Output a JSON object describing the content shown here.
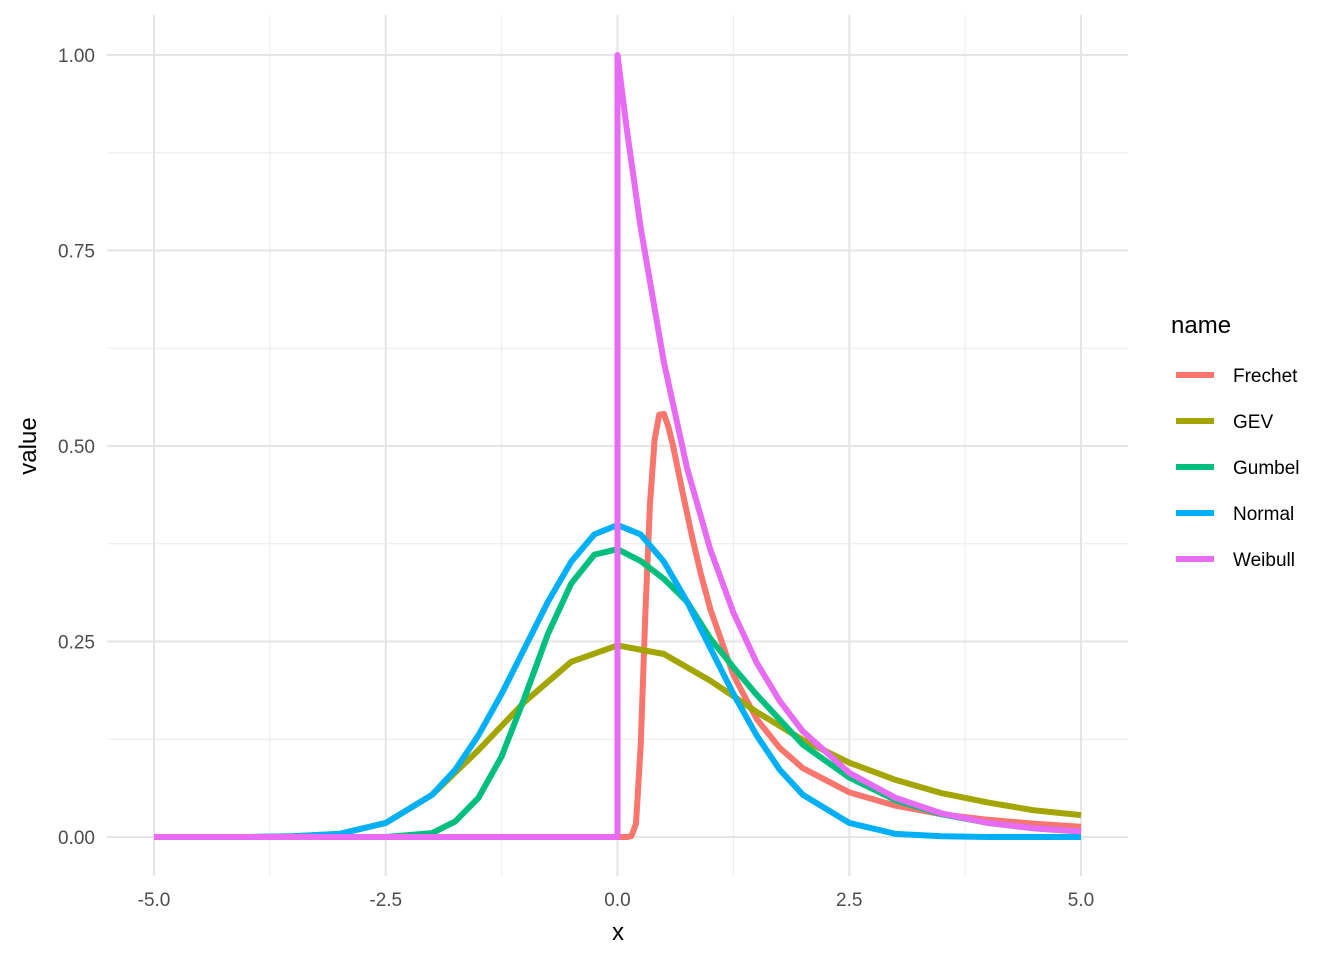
{
  "chart_data": {
    "type": "line",
    "title": "",
    "xlabel": "x",
    "ylabel": "value",
    "xlim": [
      -5,
      5
    ],
    "ylim": [
      0,
      1
    ],
    "x_ticks": [
      -5,
      -2.5,
      0,
      2.5,
      5
    ],
    "x_tick_labels": [
      "-5.0",
      "-2.5",
      "0.0",
      "2.5",
      "5.0"
    ],
    "y_ticks": [
      0,
      0.25,
      0.5,
      0.75,
      1
    ],
    "y_tick_labels": [
      "0.00",
      "0.25",
      "0.50",
      "0.75",
      "1.00"
    ],
    "grid": true,
    "legend": {
      "title": "name",
      "position": "right",
      "entries": [
        "Frechet",
        "GEV",
        "Gumbel",
        "Normal",
        "Weibull"
      ]
    },
    "series": [
      {
        "name": "Frechet",
        "color": "#F8766D",
        "x": [
          -5,
          -2.5,
          -1,
          0,
          0.05,
          0.1,
          0.15,
          0.2,
          0.25,
          0.3,
          0.35,
          0.4,
          0.45,
          0.5,
          0.55,
          0.6,
          0.7,
          0.8,
          0.9,
          1,
          1.25,
          1.5,
          1.75,
          2,
          2.5,
          3,
          3.5,
          4,
          4.5,
          5
        ],
        "y": [
          0,
          0,
          0,
          0,
          0,
          0,
          0.001,
          0.017,
          0.117,
          0.284,
          0.424,
          0.508,
          0.54,
          0.541,
          0.524,
          0.5,
          0.442,
          0.386,
          0.336,
          0.292,
          0.207,
          0.151,
          0.114,
          0.088,
          0.057,
          0.04,
          0.029,
          0.022,
          0.017,
          0.013
        ]
      },
      {
        "name": "GEV",
        "color": "#A3A500",
        "x": [
          -5,
          -4,
          -3.5,
          -3,
          -2.5,
          -2,
          -1.5,
          -1,
          -0.5,
          0,
          0.5,
          1,
          1.5,
          2,
          2.5,
          3,
          3.5,
          4,
          4.5,
          5
        ],
        "y": [
          0,
          0,
          0.001,
          0.004,
          0.018,
          0.054,
          0.111,
          0.173,
          0.224,
          0.245,
          0.234,
          0.2,
          0.16,
          0.124,
          0.095,
          0.073,
          0.056,
          0.044,
          0.034,
          0.028
        ]
      },
      {
        "name": "Gumbel",
        "color": "#00BF7D",
        "x": [
          -5,
          -2.5,
          -2,
          -1.75,
          -1.5,
          -1.25,
          -1,
          -0.75,
          -0.5,
          -0.25,
          0,
          0.25,
          0.5,
          0.75,
          1,
          1.25,
          1.5,
          2,
          2.5,
          3,
          3.5,
          4,
          4.5,
          5
        ],
        "y": [
          0,
          0,
          0.005,
          0.02,
          0.05,
          0.103,
          0.179,
          0.26,
          0.324,
          0.361,
          0.368,
          0.353,
          0.33,
          0.301,
          0.254,
          0.217,
          0.182,
          0.118,
          0.076,
          0.047,
          0.029,
          0.018,
          0.011,
          0.007
        ]
      },
      {
        "name": "Normal",
        "color": "#00B0F6",
        "x": [
          -5,
          -4,
          -3.5,
          -3,
          -2.5,
          -2,
          -1.75,
          -1.5,
          -1.25,
          -1,
          -0.75,
          -0.5,
          -0.25,
          0,
          0.25,
          0.5,
          0.75,
          1,
          1.25,
          1.5,
          1.75,
          2,
          2.5,
          3,
          3.5,
          4,
          5
        ],
        "y": [
          0,
          0,
          0.001,
          0.004,
          0.018,
          0.054,
          0.086,
          0.13,
          0.183,
          0.242,
          0.301,
          0.352,
          0.387,
          0.399,
          0.387,
          0.352,
          0.301,
          0.242,
          0.183,
          0.13,
          0.086,
          0.054,
          0.018,
          0.004,
          0.001,
          0,
          0
        ]
      },
      {
        "name": "Weibull",
        "color": "#E76BF3",
        "x": [
          -5,
          -2.5,
          -1,
          0,
          0,
          0.1,
          0.25,
          0.5,
          0.75,
          1,
          1.25,
          1.5,
          1.75,
          2,
          2.5,
          3,
          3.5,
          4,
          4.5,
          5
        ],
        "y": [
          0,
          0,
          0,
          0,
          1,
          0.905,
          0.779,
          0.607,
          0.472,
          0.368,
          0.287,
          0.223,
          0.174,
          0.135,
          0.082,
          0.05,
          0.03,
          0.018,
          0.011,
          0.007
        ]
      }
    ]
  }
}
